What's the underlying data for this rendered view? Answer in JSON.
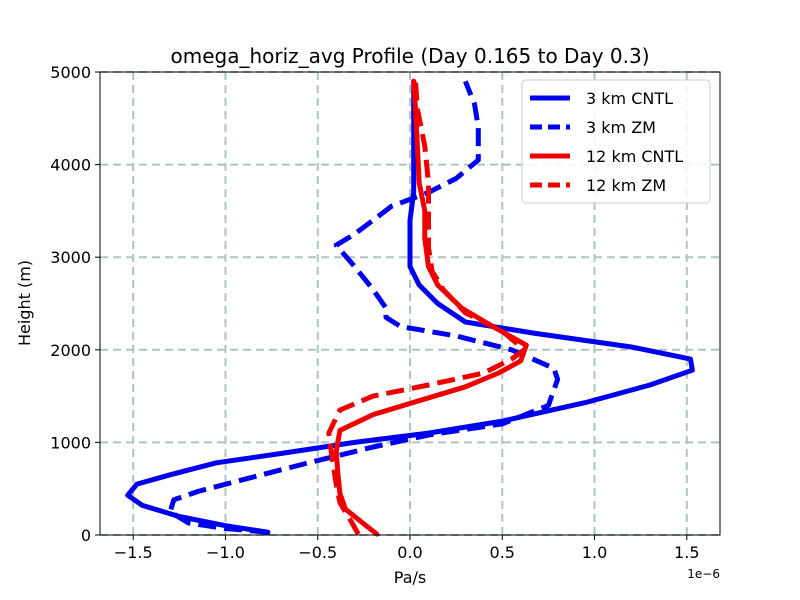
{
  "chart_data": {
    "type": "line",
    "title": "omega_horiz_avg Profile (Day 0.165 to Day 0.3)",
    "xlabel": "Pa/s",
    "ylabel": "Height (m)",
    "x_offset_label": "1e−6",
    "xlim": [
      -1.68,
      1.68
    ],
    "ylim": [
      0,
      5000
    ],
    "xticks": [
      -1.5,
      -1.0,
      -0.5,
      0.0,
      0.5,
      1.0,
      1.5
    ],
    "xtick_labels": [
      "−1.5",
      "−1.0",
      "−0.5",
      "0.0",
      "0.5",
      "1.0",
      "1.5"
    ],
    "yticks": [
      0,
      1000,
      2000,
      3000,
      4000,
      5000
    ],
    "ytick_labels": [
      "0",
      "1000",
      "2000",
      "3000",
      "4000",
      "5000"
    ],
    "grid": true,
    "legend_position": "top-right",
    "series": [
      {
        "name": "3 km CNTL",
        "color": "#0000ee",
        "dash": "solid",
        "points": [
          [
            -0.77,
            30
          ],
          [
            -1.0,
            100
          ],
          [
            -1.25,
            200
          ],
          [
            -1.45,
            320
          ],
          [
            -1.53,
            430
          ],
          [
            -1.48,
            550
          ],
          [
            -1.3,
            650
          ],
          [
            -1.05,
            780
          ],
          [
            -0.7,
            880
          ],
          [
            -0.3,
            1000
          ],
          [
            0.1,
            1100
          ],
          [
            0.5,
            1230
          ],
          [
            0.95,
            1430
          ],
          [
            1.3,
            1620
          ],
          [
            1.53,
            1780
          ],
          [
            1.52,
            1900
          ],
          [
            1.2,
            2030
          ],
          [
            0.67,
            2180
          ],
          [
            0.3,
            2300
          ],
          [
            0.15,
            2500
          ],
          [
            0.05,
            2700
          ],
          [
            0.0,
            2900
          ],
          [
            0.0,
            3100
          ],
          [
            0.0,
            3400
          ],
          [
            0.02,
            3700
          ],
          [
            0.02,
            4200
          ],
          [
            0.02,
            4600
          ],
          [
            0.02,
            4900
          ]
        ]
      },
      {
        "name": "3 km ZM",
        "color": "#0000ee",
        "dash": "dashed",
        "points": [
          [
            -0.77,
            30
          ],
          [
            -1.0,
            70
          ],
          [
            -1.2,
            130
          ],
          [
            -1.3,
            250
          ],
          [
            -1.28,
            380
          ],
          [
            -1.15,
            470
          ],
          [
            -0.9,
            600
          ],
          [
            -0.55,
            780
          ],
          [
            -0.2,
            950
          ],
          [
            0.1,
            1080
          ],
          [
            0.5,
            1200
          ],
          [
            0.75,
            1400
          ],
          [
            0.8,
            1680
          ],
          [
            0.78,
            1800
          ],
          [
            0.55,
            2000
          ],
          [
            0.25,
            2150
          ],
          [
            -0.05,
            2250
          ],
          [
            -0.13,
            2350
          ],
          [
            -0.13,
            2450
          ],
          [
            -0.2,
            2650
          ],
          [
            -0.3,
            2900
          ],
          [
            -0.4,
            3130
          ],
          [
            -0.3,
            3250
          ],
          [
            -0.1,
            3550
          ],
          [
            0.1,
            3700
          ],
          [
            0.25,
            3850
          ],
          [
            0.37,
            4050
          ],
          [
            0.37,
            4400
          ],
          [
            0.35,
            4650
          ],
          [
            0.3,
            4900
          ]
        ]
      },
      {
        "name": "12 km CNTL",
        "color": "#ee0000",
        "dash": "solid",
        "points": [
          [
            -0.18,
            10
          ],
          [
            -0.25,
            120
          ],
          [
            -0.35,
            280
          ],
          [
            -0.38,
            450
          ],
          [
            -0.39,
            650
          ],
          [
            -0.4,
            900
          ],
          [
            -0.38,
            1130
          ],
          [
            -0.2,
            1300
          ],
          [
            0.05,
            1450
          ],
          [
            0.3,
            1600
          ],
          [
            0.48,
            1750
          ],
          [
            0.6,
            1880
          ],
          [
            0.63,
            2050
          ],
          [
            0.45,
            2250
          ],
          [
            0.28,
            2450
          ],
          [
            0.15,
            2700
          ],
          [
            0.1,
            2900
          ],
          [
            0.08,
            3200
          ],
          [
            0.08,
            3500
          ],
          [
            0.05,
            3800
          ],
          [
            0.04,
            4200
          ],
          [
            0.03,
            4600
          ],
          [
            0.02,
            4900
          ]
        ]
      },
      {
        "name": "12 km ZM",
        "color": "#ee0000",
        "dash": "dashed",
        "points": [
          [
            -0.28,
            10
          ],
          [
            -0.32,
            150
          ],
          [
            -0.38,
            350
          ],
          [
            -0.4,
            550
          ],
          [
            -0.42,
            800
          ],
          [
            -0.44,
            1100
          ],
          [
            -0.38,
            1350
          ],
          [
            -0.2,
            1500
          ],
          [
            0.1,
            1620
          ],
          [
            0.4,
            1750
          ],
          [
            0.55,
            1900
          ],
          [
            0.62,
            2000
          ],
          [
            0.5,
            2200
          ],
          [
            0.3,
            2400
          ],
          [
            0.18,
            2650
          ],
          [
            0.12,
            2850
          ],
          [
            0.1,
            3100
          ],
          [
            0.1,
            3500
          ],
          [
            0.1,
            3800
          ],
          [
            0.08,
            4200
          ],
          [
            0.04,
            4600
          ],
          [
            0.03,
            4900
          ]
        ]
      }
    ]
  }
}
